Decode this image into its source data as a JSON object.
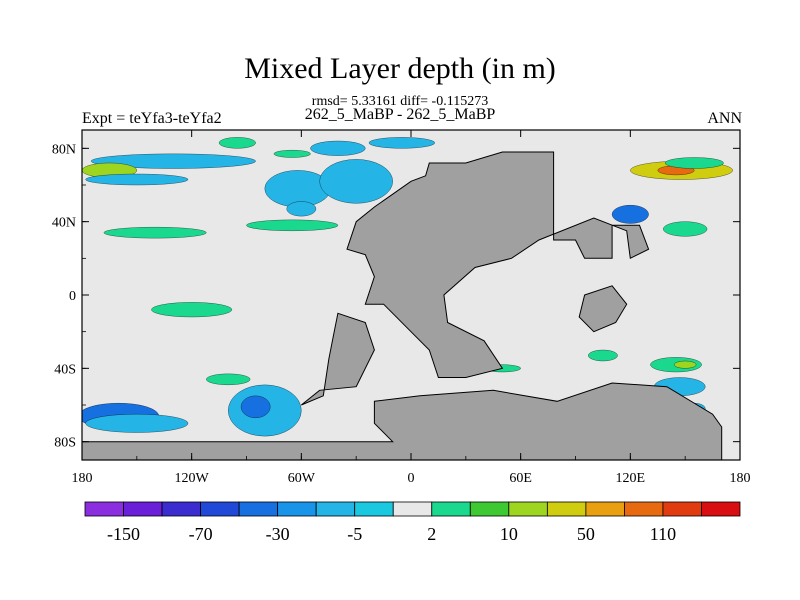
{
  "chart_data": {
    "type": "heatmap",
    "title": "Mixed Layer depth (in m)",
    "subtitle_stats": "rmsd= 5.33161 diff= -0.115273",
    "subtitle_case": "262_5_MaBP - 262_5_MaBP",
    "left_string": "Expt = teYfa3-teYfa2",
    "right_string": "ANN",
    "x_ticks": [
      "180",
      "120W",
      "60W",
      "0",
      "60E",
      "120E",
      "180"
    ],
    "y_ticks": [
      "80N",
      "40N",
      "0",
      "40S",
      "80S"
    ],
    "xlim": [
      -180,
      180
    ],
    "ylim": [
      -90,
      90
    ],
    "colorbar": {
      "labels": [
        "-150",
        "-70",
        "-30",
        "-5",
        "2",
        "10",
        "50",
        "110"
      ],
      "colors": [
        "#8a2ee0",
        "#6a1fd8",
        "#3a2ccf",
        "#2049d8",
        "#1670e0",
        "#1a94e8",
        "#25b4e6",
        "#1ac9e0",
        "#e8e8e8",
        "#1ad88e",
        "#3ec832",
        "#9dd520",
        "#d0cc10",
        "#e8a010",
        "#e86a10",
        "#e03c10",
        "#d80e10"
      ]
    },
    "colors": {
      "background": "#e8e8e8",
      "land": "#a0a0a0"
    },
    "anomaly_regions": [
      {
        "lon": -130,
        "lat": 73,
        "rx": 45,
        "ry": 4,
        "color": "#25b4e6"
      },
      {
        "lon": -165,
        "lat": 68,
        "rx": 15,
        "ry": 4,
        "color": "#9dd520"
      },
      {
        "lon": -150,
        "lat": 63,
        "rx": 28,
        "ry": 3,
        "color": "#25b4e6"
      },
      {
        "lon": -95,
        "lat": 83,
        "rx": 10,
        "ry": 3,
        "color": "#1ad88e"
      },
      {
        "lon": -65,
        "lat": 77,
        "rx": 10,
        "ry": 2,
        "color": "#1ad88e"
      },
      {
        "lon": -62,
        "lat": 58,
        "rx": 18,
        "ry": 10,
        "color": "#25b4e6"
      },
      {
        "lon": -30,
        "lat": 62,
        "rx": 20,
        "ry": 12,
        "color": "#25b4e6"
      },
      {
        "lon": -40,
        "lat": 80,
        "rx": 15,
        "ry": 4,
        "color": "#25b4e6"
      },
      {
        "lon": -5,
        "lat": 83,
        "rx": 18,
        "ry": 3,
        "color": "#25b4e6"
      },
      {
        "lon": -140,
        "lat": 34,
        "rx": 28,
        "ry": 3,
        "color": "#1ad88e"
      },
      {
        "lon": -65,
        "lat": 38,
        "rx": 25,
        "ry": 3,
        "color": "#1ad88e"
      },
      {
        "lon": -60,
        "lat": 47,
        "rx": 8,
        "ry": 4,
        "color": "#25b4e6"
      },
      {
        "lon": 148,
        "lat": 68,
        "rx": 28,
        "ry": 5,
        "color": "#d0cc10"
      },
      {
        "lon": 145,
        "lat": 68,
        "rx": 10,
        "ry": 2.5,
        "color": "#e86a10"
      },
      {
        "lon": 155,
        "lat": 72,
        "rx": 16,
        "ry": 3,
        "color": "#1ad88e"
      },
      {
        "lon": 120,
        "lat": 44,
        "rx": 10,
        "ry": 5,
        "color": "#1670e0"
      },
      {
        "lon": 150,
        "lat": 36,
        "rx": 12,
        "ry": 4,
        "color": "#1ad88e"
      },
      {
        "lon": -120,
        "lat": -8,
        "rx": 22,
        "ry": 4,
        "color": "#1ad88e"
      },
      {
        "lon": -100,
        "lat": -46,
        "rx": 12,
        "ry": 3,
        "color": "#1ad88e"
      },
      {
        "lon": -160,
        "lat": -66,
        "rx": 22,
        "ry": 7,
        "color": "#1670e0"
      },
      {
        "lon": -150,
        "lat": -70,
        "rx": 28,
        "ry": 5,
        "color": "#25b4e6"
      },
      {
        "lon": -80,
        "lat": -63,
        "rx": 20,
        "ry": 14,
        "color": "#25b4e6"
      },
      {
        "lon": -85,
        "lat": -61,
        "rx": 8,
        "ry": 6,
        "color": "#1670e0"
      },
      {
        "lon": 145,
        "lat": -38,
        "rx": 14,
        "ry": 4,
        "color": "#1ad88e"
      },
      {
        "lon": 150,
        "lat": -38,
        "rx": 6,
        "ry": 2,
        "color": "#9dd520"
      },
      {
        "lon": 147,
        "lat": -50,
        "rx": 14,
        "ry": 5,
        "color": "#25b4e6"
      },
      {
        "lon": 50,
        "lat": -40,
        "rx": 10,
        "ry": 2,
        "color": "#1ad88e"
      },
      {
        "lon": 105,
        "lat": -33,
        "rx": 8,
        "ry": 3,
        "color": "#1ad88e"
      },
      {
        "lon": 155,
        "lat": -62,
        "rx": 6,
        "ry": 3,
        "color": "#25b4e6"
      }
    ],
    "land_masses": [
      [
        [
          10,
          72
        ],
        [
          30,
          72
        ],
        [
          50,
          78
        ],
        [
          78,
          78
        ],
        [
          78,
          30
        ],
        [
          90,
          30
        ],
        [
          95,
          20
        ],
        [
          110,
          20
        ],
        [
          110,
          38
        ],
        [
          125,
          38
        ],
        [
          130,
          25
        ],
        [
          120,
          20
        ],
        [
          118,
          35
        ],
        [
          100,
          42
        ],
        [
          70,
          30
        ],
        [
          55,
          20
        ],
        [
          35,
          15
        ],
        [
          18,
          0
        ],
        [
          20,
          -15
        ],
        [
          40,
          -25
        ],
        [
          50,
          -40
        ],
        [
          30,
          -45
        ],
        [
          15,
          -45
        ],
        [
          10,
          -30
        ],
        [
          0,
          -20
        ],
        [
          -15,
          -5
        ],
        [
          -25,
          -5
        ],
        [
          -20,
          10
        ],
        [
          -25,
          22
        ],
        [
          -35,
          25
        ],
        [
          -30,
          40
        ],
        [
          -20,
          48
        ],
        [
          -10,
          55
        ],
        [
          0,
          62
        ],
        [
          8,
          65
        ]
      ],
      [
        [
          -40,
          -10
        ],
        [
          -25,
          -15
        ],
        [
          -20,
          -30
        ],
        [
          -30,
          -50
        ],
        [
          -50,
          -52
        ],
        [
          -60,
          -60
        ],
        [
          -48,
          -55
        ],
        [
          -45,
          -35
        ],
        [
          -42,
          -20
        ]
      ],
      [
        [
          95,
          0
        ],
        [
          110,
          5
        ],
        [
          118,
          -5
        ],
        [
          112,
          -15
        ],
        [
          100,
          -20
        ],
        [
          92,
          -12
        ]
      ],
      [
        [
          -20,
          -58
        ],
        [
          5,
          -55
        ],
        [
          45,
          -52
        ],
        [
          80,
          -58
        ],
        [
          110,
          -48
        ],
        [
          140,
          -50
        ],
        [
          165,
          -65
        ],
        [
          170,
          -72
        ],
        [
          170,
          -90
        ],
        [
          -180,
          -90
        ],
        [
          -180,
          -80
        ],
        [
          -10,
          -80
        ],
        [
          -20,
          -70
        ]
      ]
    ]
  }
}
